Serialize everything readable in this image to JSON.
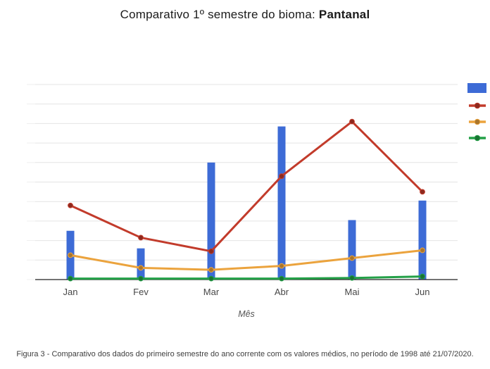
{
  "title": {
    "prefix": "Comparativo 1º semestre do bioma: ",
    "biome": "Pantanal"
  },
  "chart_data": {
    "type": "bar+line",
    "title": "Comparativo 1º semestre do bioma: Pantanal",
    "categories": [
      "Jan",
      "Fev",
      "Mar",
      "Abr",
      "Mai",
      "Jun"
    ],
    "series": [
      {
        "id": "bars-blue",
        "kind": "bar",
        "color": "#3D6BD6",
        "values": [
          250,
          160,
          600,
          785,
          305,
          405
        ]
      },
      {
        "id": "line-red",
        "kind": "line",
        "color": "#C23B2B",
        "values": [
          380,
          215,
          145,
          530,
          810,
          450
        ]
      },
      {
        "id": "line-orange",
        "kind": "line",
        "color": "#EBA33D",
        "values": [
          125,
          60,
          50,
          70,
          110,
          150
        ]
      },
      {
        "id": "line-green",
        "kind": "line",
        "color": "#23A047",
        "values": [
          5,
          5,
          5,
          5,
          8,
          16
        ]
      }
    ],
    "xlabel": "Mês",
    "ylabel": "",
    "ylim": [
      0,
      1000
    ],
    "gridline_step": 100,
    "grid": true,
    "y_tick_labels_visible": false,
    "legend_position": "right-edge-markers-only-labels-cut-off"
  },
  "caption": "Figura 3 - Comparativo dos dados do primeiro semestre do ano corrente com os valores médios, no período de 1998 até 21/07/2020."
}
